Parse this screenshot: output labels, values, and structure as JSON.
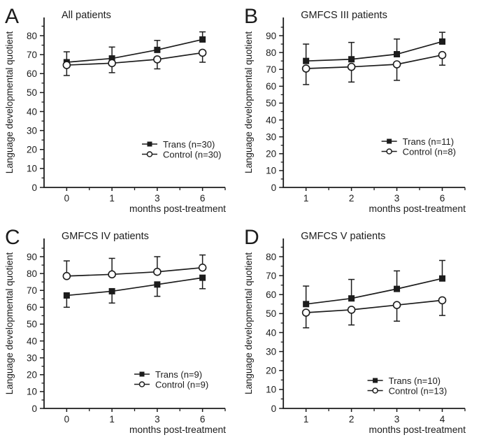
{
  "figure": {
    "background": "#ffffff",
    "ink_color": "#1c1c1c"
  },
  "chart_data": [
    {
      "panel": "A",
      "title": "All patients",
      "type": "line",
      "xlabel": "months post-treatment",
      "ylabel": "Language developmental quotient",
      "x_categories": [
        "0",
        "1",
        "3",
        "6"
      ],
      "y_ticks": [
        0,
        10,
        20,
        30,
        40,
        50,
        60,
        70,
        80
      ],
      "ylim": [
        0,
        89
      ],
      "grid": false,
      "legend_pos": {
        "x": 203,
        "y": 206
      },
      "series": [
        {
          "name": "Trans (n=30)",
          "marker": "filled-square",
          "error_direction": "up",
          "values": [
            66,
            68,
            72.5,
            78
          ],
          "errors": [
            5.5,
            6,
            5,
            4
          ]
        },
        {
          "name": "Control (n=30)",
          "marker": "open-circle",
          "error_direction": "down",
          "values": [
            64.5,
            65.5,
            67.5,
            71
          ],
          "errors": [
            5.5,
            5,
            5,
            5
          ]
        }
      ]
    },
    {
      "panel": "B",
      "title": "GMFCS III patients",
      "type": "line",
      "xlabel": "months post-treatment",
      "ylabel": "Language developmental quotient",
      "x_categories": [
        "1",
        "2",
        "3",
        "6"
      ],
      "y_ticks": [
        0,
        10,
        20,
        30,
        40,
        50,
        60,
        70,
        80,
        90
      ],
      "ylim": [
        0,
        100
      ],
      "grid": false,
      "legend_pos": {
        "x": 203,
        "y": 202
      },
      "series": [
        {
          "name": "Trans (n=11)",
          "marker": "filled-square",
          "error_direction": "up",
          "values": [
            75,
            76,
            79,
            86.5
          ],
          "errors": [
            10,
            10,
            9,
            5.5
          ]
        },
        {
          "name": "Control (n=8)",
          "marker": "open-circle",
          "error_direction": "down",
          "values": [
            70.5,
            71.5,
            73,
            78.5
          ],
          "errors": [
            9.5,
            9,
            9.5,
            6
          ]
        }
      ]
    },
    {
      "panel": "C",
      "title": "GMFCS IV patients",
      "type": "line",
      "xlabel": "months post-treatment",
      "ylabel": "Language developmental quotient",
      "x_categories": [
        "0",
        "1",
        "3",
        "6"
      ],
      "y_ticks": [
        0,
        10,
        20,
        30,
        40,
        50,
        60,
        70,
        80,
        90
      ],
      "ylim": [
        0,
        100
      ],
      "grid": false,
      "legend_pos": {
        "x": 192,
        "y": 219
      },
      "series": [
        {
          "name": "Trans (n=9)",
          "marker": "filled-square",
          "error_direction": "down",
          "values": [
            67,
            69.5,
            73.5,
            77.5
          ],
          "errors": [
            7,
            7,
            7,
            6.5
          ]
        },
        {
          "name": "Control (n=9)",
          "marker": "open-circle",
          "error_direction": "up",
          "values": [
            78.5,
            79.5,
            81,
            83.5
          ],
          "errors": [
            9,
            9.5,
            9,
            7.5
          ]
        }
      ]
    },
    {
      "panel": "D",
      "title": "GMFCS V patients",
      "type": "line",
      "xlabel": "months post-treatment",
      "ylabel": "Language developmental quotient",
      "x_categories": [
        "1",
        "2",
        "3",
        "4"
      ],
      "y_ticks": [
        0,
        10,
        20,
        30,
        40,
        50,
        60,
        70,
        80
      ],
      "ylim": [
        0,
        89
      ],
      "grid": false,
      "legend_pos": {
        "x": 183,
        "y": 228
      },
      "series": [
        {
          "name": "Trans (n=10)",
          "marker": "filled-square",
          "error_direction": "up",
          "values": [
            55,
            58,
            63,
            68.5
          ],
          "errors": [
            9.5,
            10,
            9.5,
            9.5
          ]
        },
        {
          "name": "Control (n=13)",
          "marker": "open-circle",
          "error_direction": "down",
          "values": [
            50.5,
            52,
            54.5,
            57
          ],
          "errors": [
            8,
            8,
            8.5,
            8
          ]
        }
      ]
    }
  ]
}
